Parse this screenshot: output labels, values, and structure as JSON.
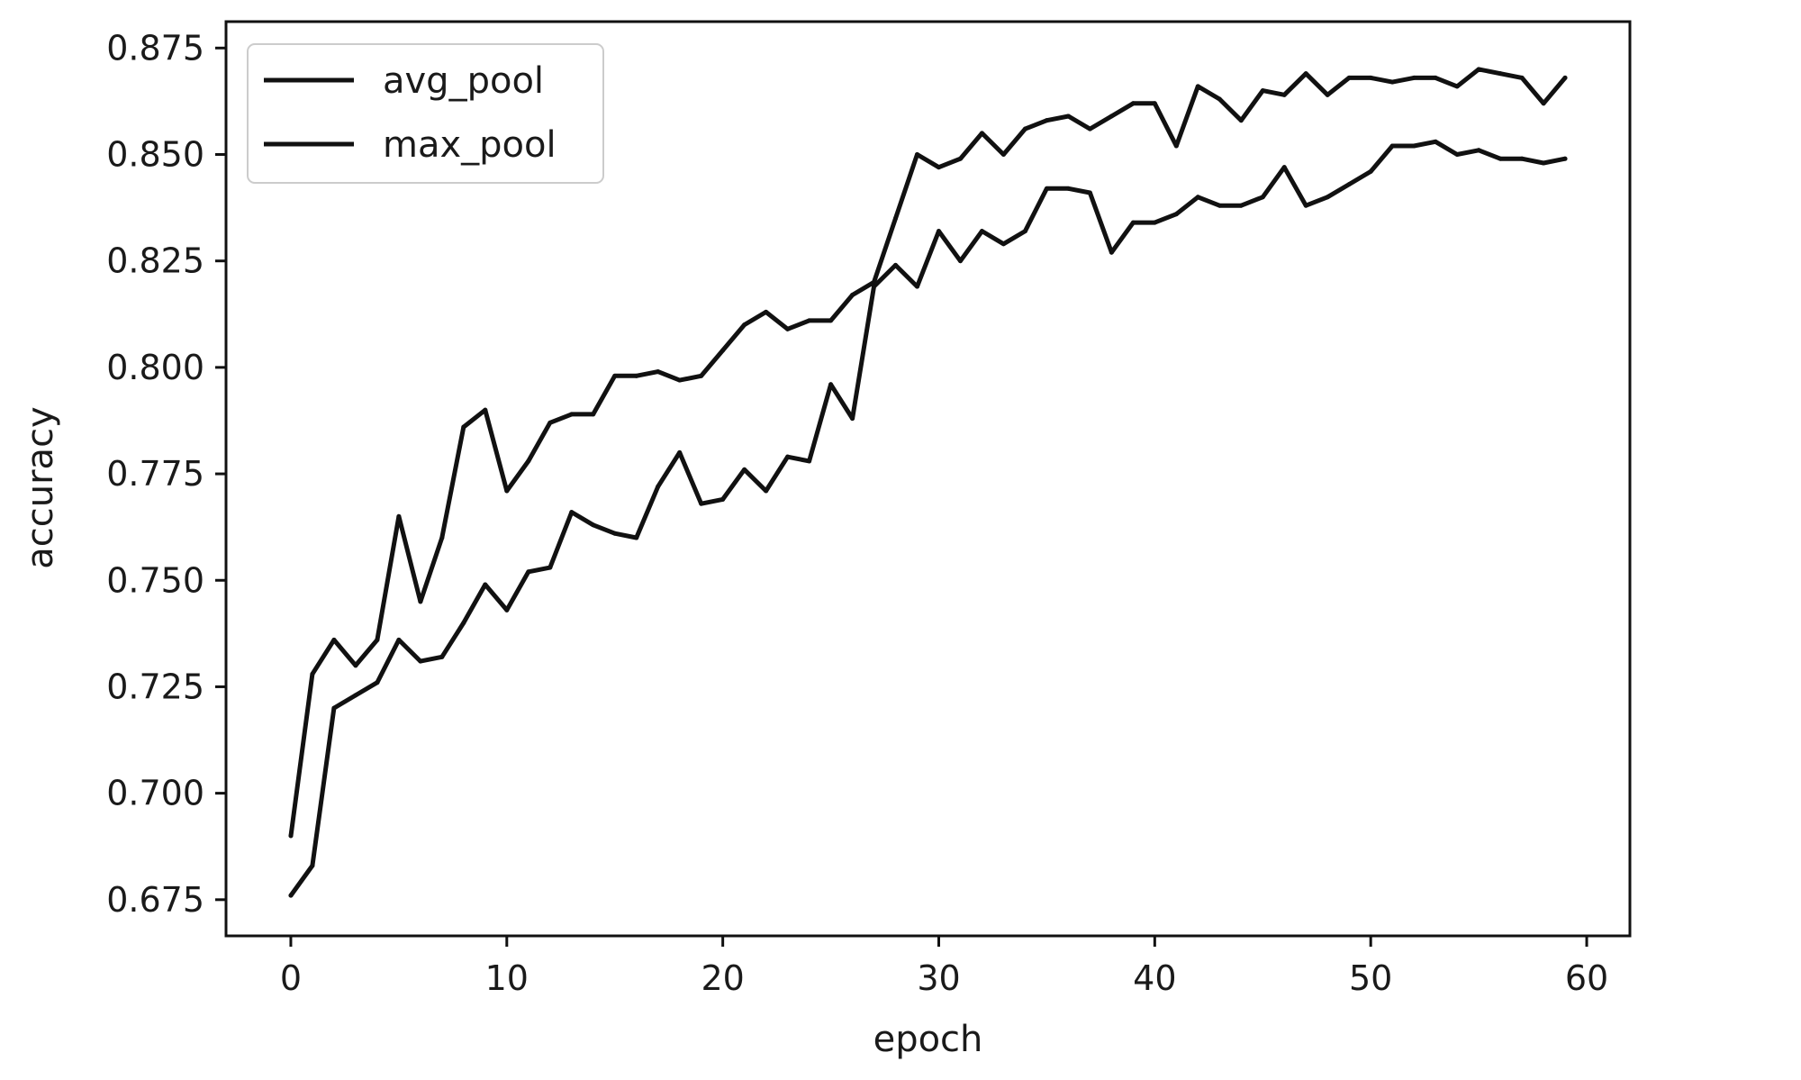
{
  "chart_data": {
    "type": "line",
    "title": "",
    "xlabel": "epoch",
    "ylabel": "accuracy",
    "xlim": [
      -3,
      62
    ],
    "ylim": [
      0.6665,
      0.8812
    ],
    "xticks": [
      0,
      10,
      20,
      30,
      40,
      50,
      60
    ],
    "xtick_labels": [
      "0",
      "10",
      "20",
      "30",
      "40",
      "50",
      "60"
    ],
    "yticks": [
      0.675,
      0.7,
      0.725,
      0.75,
      0.775,
      0.8,
      0.825,
      0.85,
      0.875
    ],
    "ytick_labels": [
      "0.675",
      "0.700",
      "0.725",
      "0.750",
      "0.775",
      "0.800",
      "0.825",
      "0.850",
      "0.875"
    ],
    "grid": false,
    "legend_position": "top-left",
    "line_color": "#111111",
    "x": [
      0,
      1,
      2,
      3,
      4,
      5,
      6,
      7,
      8,
      9,
      10,
      11,
      12,
      13,
      14,
      15,
      16,
      17,
      18,
      19,
      20,
      21,
      22,
      23,
      24,
      25,
      26,
      27,
      28,
      29,
      30,
      31,
      32,
      33,
      34,
      35,
      36,
      37,
      38,
      39,
      40,
      41,
      42,
      43,
      44,
      45,
      46,
      47,
      48,
      49,
      50,
      51,
      52,
      53,
      54,
      55,
      56,
      57,
      58,
      59
    ],
    "series": [
      {
        "name": "avg_pool",
        "values": [
          0.69,
          0.728,
          0.736,
          0.73,
          0.736,
          0.765,
          0.745,
          0.76,
          0.786,
          0.79,
          0.771,
          0.778,
          0.787,
          0.789,
          0.789,
          0.798,
          0.798,
          0.799,
          0.797,
          0.798,
          0.804,
          0.81,
          0.813,
          0.809,
          0.811,
          0.811,
          0.817,
          0.82,
          0.835,
          0.85,
          0.847,
          0.849,
          0.855,
          0.85,
          0.856,
          0.858,
          0.859,
          0.856,
          0.859,
          0.862,
          0.862,
          0.852,
          0.866,
          0.863,
          0.858,
          0.865,
          0.864,
          0.869,
          0.864,
          0.868,
          0.868,
          0.867,
          0.868,
          0.868,
          0.866,
          0.87,
          0.869,
          0.868,
          0.862,
          0.868
        ]
      },
      {
        "name": "max_pool",
        "values": [
          0.676,
          0.683,
          0.72,
          0.723,
          0.726,
          0.736,
          0.731,
          0.732,
          0.74,
          0.749,
          0.743,
          0.752,
          0.753,
          0.766,
          0.763,
          0.761,
          0.76,
          0.772,
          0.78,
          0.768,
          0.769,
          0.776,
          0.771,
          0.779,
          0.778,
          0.796,
          0.788,
          0.819,
          0.824,
          0.819,
          0.832,
          0.825,
          0.832,
          0.829,
          0.832,
          0.842,
          0.842,
          0.841,
          0.827,
          0.834,
          0.834,
          0.836,
          0.84,
          0.838,
          0.838,
          0.84,
          0.847,
          0.838,
          0.84,
          0.843,
          0.846,
          0.852,
          0.852,
          0.853,
          0.85,
          0.851,
          0.849,
          0.849,
          0.848,
          0.849
        ]
      }
    ]
  }
}
